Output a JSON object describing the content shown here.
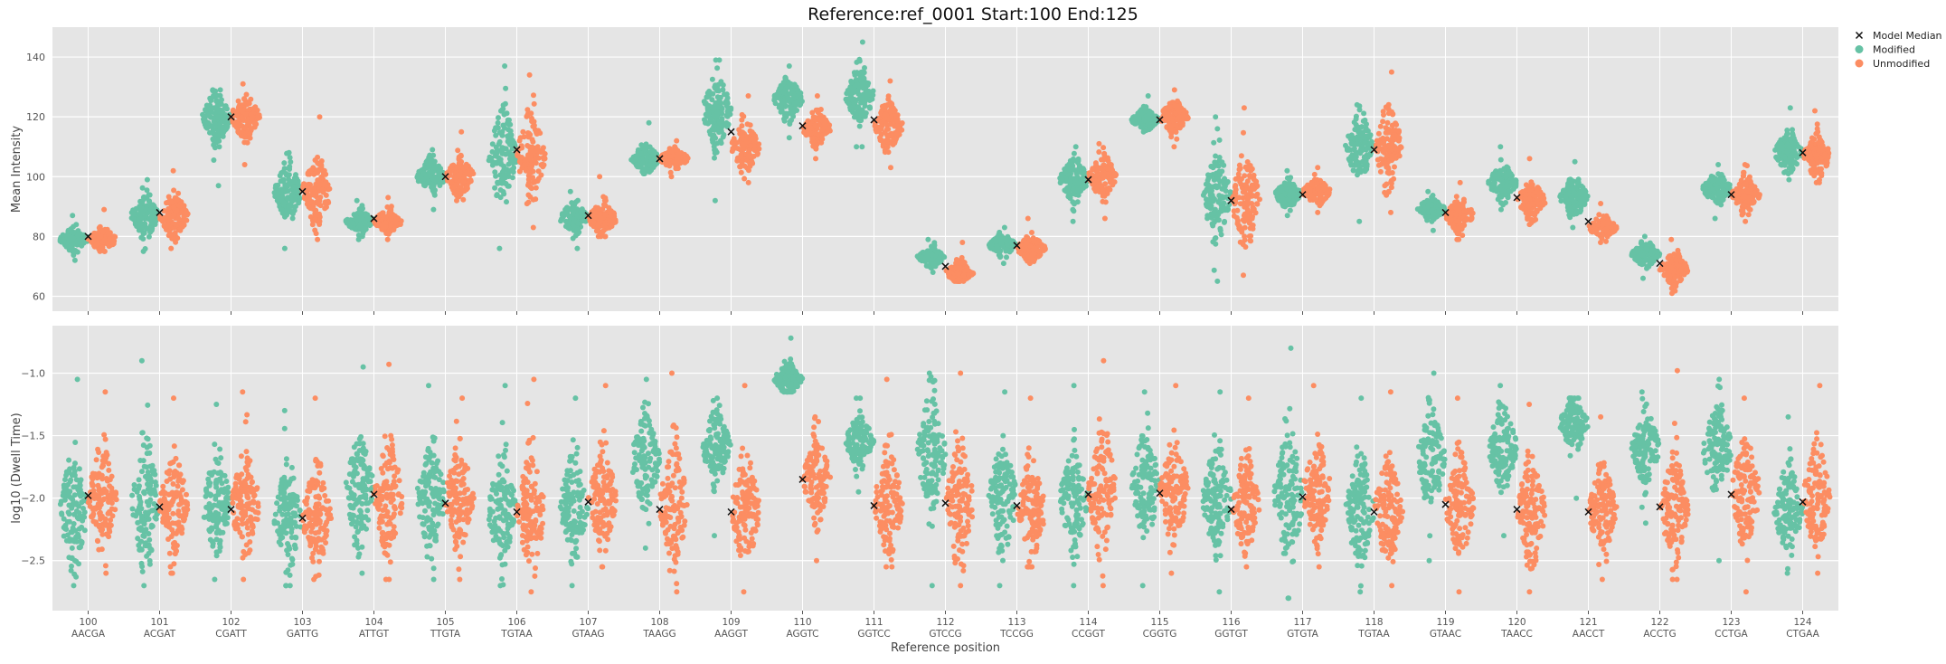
{
  "title": "Reference:ref_0001  Start:100  End:125",
  "colors": {
    "modified": "#66c2a5",
    "unmodified": "#fc8d62",
    "median": "#111111",
    "panel_bg": "#e5e5e5",
    "grid": "#ffffff"
  },
  "legend": {
    "placement": "top-right, outside plot",
    "items": [
      {
        "label": "Model Median",
        "marker": "x",
        "color": "#111111"
      },
      {
        "label": "Modified",
        "marker": "circle",
        "color": "#66c2a5"
      },
      {
        "label": "Unmodified",
        "marker": "circle",
        "color": "#fc8d62"
      }
    ]
  },
  "chart_data": [
    {
      "type": "swarm",
      "panel": "top",
      "ylabel": "Mean Intensity",
      "ylim": [
        55,
        150
      ],
      "yticks": [
        60,
        80,
        100,
        120,
        140
      ],
      "grid": true,
      "categories": [
        "100",
        "101",
        "102",
        "103",
        "104",
        "105",
        "106",
        "107",
        "108",
        "109",
        "110",
        "111",
        "112",
        "113",
        "114",
        "115",
        "116",
        "117",
        "118",
        "119",
        "120",
        "121",
        "122",
        "123",
        "124"
      ],
      "series": [
        {
          "name": "Modified",
          "medians": [
            79,
            87,
            120,
            95,
            85,
            100,
            107,
            86,
            106,
            122,
            126,
            127,
            73,
            77,
            99,
            119,
            93,
            94,
            110,
            89,
            98,
            93,
            74,
            96,
            108
          ],
          "min": [
            72,
            75,
            97,
            76,
            79,
            89,
            76,
            76,
            101,
            92,
            113,
            110,
            68,
            71,
            85,
            115,
            65,
            87,
            85,
            82,
            89,
            83,
            66,
            86,
            99
          ],
          "max": [
            87,
            99,
            129,
            108,
            92,
            109,
            137,
            95,
            118,
            139,
            137,
            145,
            79,
            83,
            110,
            127,
            120,
            102,
            124,
            95,
            110,
            105,
            80,
            104,
            123
          ]
        },
        {
          "name": "Unmodified",
          "medians": [
            79,
            87,
            120,
            95,
            85,
            100,
            107,
            86,
            106,
            110,
            116,
            117,
            68,
            76,
            100,
            120,
            92,
            95,
            110,
            87,
            92,
            83,
            69,
            94,
            107
          ],
          "min": [
            75,
            76,
            104,
            79,
            79,
            92,
            83,
            80,
            100,
            98,
            106,
            103,
            65,
            71,
            86,
            110,
            67,
            88,
            88,
            79,
            84,
            78,
            61,
            85,
            98
          ],
          "max": [
            89,
            102,
            131,
            120,
            93,
            115,
            134,
            100,
            112,
            127,
            127,
            132,
            78,
            86,
            111,
            129,
            123,
            103,
            135,
            98,
            106,
            91,
            79,
            104,
            122
          ]
        }
      ],
      "model_median": [
        80,
        88,
        120,
        95,
        86,
        100,
        109,
        87,
        106,
        115,
        117,
        119,
        70,
        77,
        99,
        119,
        92,
        94,
        109,
        88,
        93,
        85,
        71,
        94,
        108
      ]
    },
    {
      "type": "swarm",
      "panel": "bottom",
      "xlabel": "Reference position",
      "ylabel": "log10 (Dwell Time)",
      "ylim": [
        -2.9,
        -0.62
      ],
      "yticks": [
        -1.0,
        -1.5,
        -2.0,
        -2.5
      ],
      "ytick_labels": [
        "−1.0",
        "−1.5",
        "−2.0",
        "−2.5"
      ],
      "grid": true,
      "categories": [
        "100",
        "101",
        "102",
        "103",
        "104",
        "105",
        "106",
        "107",
        "108",
        "109",
        "110",
        "111",
        "112",
        "113",
        "114",
        "115",
        "116",
        "117",
        "118",
        "119",
        "120",
        "121",
        "122",
        "123",
        "124"
      ],
      "kmers": [
        "AACGA",
        "ACGAT",
        "CGATT",
        "GATTG",
        "ATTGT",
        "TTGTA",
        "TGTAA",
        "GTAAG",
        "TAAGG",
        "AAGGT",
        "AGGTC",
        "GGTCC",
        "GTCCG",
        "TCCGG",
        "CCGGT",
        "CGGTG",
        "GGTGT",
        "GTGTA",
        "TGTAA",
        "GTAAC",
        "TAACC",
        "AACCT",
        "ACCTG",
        "CCTGA",
        "CTGAA"
      ],
      "series": [
        {
          "name": "Modified",
          "medians": [
            -2.1,
            -2.05,
            -2.05,
            -2.15,
            -1.95,
            -2.0,
            -2.1,
            -2.05,
            -1.7,
            -1.6,
            -1.05,
            -1.55,
            -1.65,
            -2.0,
            -2.0,
            -1.9,
            -2.0,
            -2.0,
            -2.1,
            -1.7,
            -1.6,
            -1.4,
            -1.6,
            -1.6,
            -2.1
          ],
          "min": [
            -2.7,
            -2.7,
            -2.65,
            -2.7,
            -2.6,
            -2.65,
            -2.7,
            -2.7,
            -2.4,
            -2.3,
            -1.15,
            -1.95,
            -2.7,
            -2.7,
            -2.7,
            -2.7,
            -2.75,
            -2.8,
            -2.75,
            -2.5,
            -2.3,
            -2.0,
            -2.2,
            -2.5,
            -2.6
          ],
          "max": [
            -1.05,
            -0.9,
            -1.25,
            -1.3,
            -0.95,
            -1.1,
            -1.1,
            -1.2,
            -1.05,
            -1.2,
            -0.72,
            -1.2,
            -1.0,
            -1.15,
            -1.1,
            -1.15,
            -1.15,
            -0.8,
            -1.2,
            -1.0,
            -1.1,
            -1.2,
            -1.15,
            -1.05,
            -1.35
          ]
        },
        {
          "name": "Unmodified",
          "medians": [
            -2.0,
            -2.05,
            -2.05,
            -2.15,
            -2.0,
            -2.0,
            -2.1,
            -2.0,
            -2.05,
            -2.1,
            -1.85,
            -2.05,
            -2.05,
            -2.1,
            -1.95,
            -1.95,
            -2.05,
            -1.95,
            -2.1,
            -2.05,
            -2.1,
            -2.1,
            -2.1,
            -1.95,
            -2.0
          ],
          "min": [
            -2.6,
            -2.6,
            -2.65,
            -2.65,
            -2.65,
            -2.65,
            -2.75,
            -2.55,
            -2.75,
            -2.75,
            -2.5,
            -2.55,
            -2.7,
            -2.55,
            -2.7,
            -2.6,
            -2.55,
            -2.55,
            -2.7,
            -2.75,
            -2.75,
            -2.65,
            -2.65,
            -2.75,
            -2.6
          ],
          "max": [
            -1.15,
            -1.2,
            -1.15,
            -1.2,
            -0.93,
            -1.2,
            -1.05,
            -1.1,
            -1.0,
            -1.1,
            -1.35,
            -1.05,
            -1.0,
            -1.2,
            -0.9,
            -1.1,
            -1.2,
            -1.1,
            -1.15,
            -1.2,
            -1.25,
            -1.35,
            -0.98,
            -1.2,
            -1.1
          ]
        }
      ],
      "model_median": [
        -1.98,
        -2.07,
        -2.09,
        -2.16,
        -1.97,
        -2.04,
        -2.11,
        -2.03,
        -2.09,
        -2.11,
        -1.85,
        -2.06,
        -2.04,
        -2.06,
        -1.97,
        -1.96,
        -2.09,
        -1.99,
        -2.11,
        -2.05,
        -2.09,
        -2.11,
        -2.07,
        -1.97,
        -2.03
      ]
    }
  ]
}
